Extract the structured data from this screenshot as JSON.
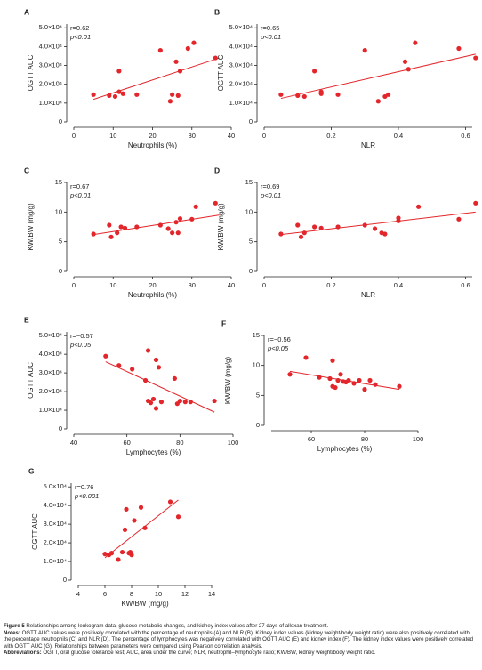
{
  "chart_data": [
    {
      "type": "scatter",
      "panel": "A",
      "x_label": "Neutrophils (%)",
      "y_label": "OGTT AUC",
      "annotations": [
        "r=0.62",
        "p<0.01"
      ],
      "color": "#e3262b",
      "x": [
        5,
        9,
        10.5,
        11.5,
        11.5,
        12.5,
        16,
        22,
        24.5,
        25,
        26,
        26.5,
        27,
        29,
        30.5,
        36
      ],
      "y": [
        14500,
        14000,
        13500,
        16000,
        27000,
        15000,
        14500,
        38000,
        11000,
        14500,
        32000,
        14000,
        27000,
        39000,
        42000,
        34000
      ],
      "fit_x": [
        5,
        37
      ],
      "fit_y": [
        12000,
        34000
      ],
      "xlim": [
        0,
        40
      ],
      "xticks": [
        0,
        10,
        20,
        30,
        40
      ],
      "ylim": [
        0,
        52000
      ],
      "yticks": [
        0,
        {
          "value": 10000,
          "label": "1.0×10⁴"
        },
        {
          "value": 20000,
          "label": "2.0×10⁴"
        },
        {
          "value": 30000,
          "label": "3.0×10⁴"
        },
        {
          "value": 40000,
          "label": "4.0×10⁴"
        },
        {
          "value": 50000,
          "label": "5.0×10⁴"
        }
      ]
    },
    {
      "type": "scatter",
      "panel": "B",
      "x_label": "NLR",
      "y_label": "OGTT AUC",
      "annotations": [
        "r=0.65",
        "p<0.01"
      ],
      "color": "#e3262b",
      "x": [
        0.05,
        0.1,
        0.12,
        0.15,
        0.17,
        0.17,
        0.22,
        0.3,
        0.34,
        0.36,
        0.37,
        0.42,
        0.43,
        0.45,
        0.58,
        0.63
      ],
      "y": [
        14500,
        14000,
        13500,
        27000,
        16000,
        15000,
        14500,
        38000,
        11000,
        13500,
        14500,
        32000,
        28000,
        42000,
        39000,
        34000
      ],
      "fit_x": [
        0.05,
        0.63
      ],
      "fit_y": [
        12500,
        36000
      ],
      "xlim": [
        0,
        0.62
      ],
      "xticks": [
        0,
        0.2,
        0.4,
        0.6
      ],
      "ylim": [
        0,
        52000
      ],
      "yticks": [
        0,
        {
          "value": 10000,
          "label": "1.0×10⁴"
        },
        {
          "value": 20000,
          "label": "2.0×10⁴"
        },
        {
          "value": 30000,
          "label": "3.0×10⁴"
        },
        {
          "value": 40000,
          "label": "4.0×10⁴"
        },
        {
          "value": 50000,
          "label": "5.0×10⁴"
        }
      ]
    },
    {
      "type": "scatter",
      "panel": "C",
      "x_label": "Neutrophils (%)",
      "y_label": "KW/BW (mg/g)",
      "annotations": [
        "r=0.67",
        "p<0.01"
      ],
      "color": "#e3262b",
      "x": [
        5,
        9,
        9.5,
        11,
        12,
        13,
        16,
        22,
        24,
        25,
        26,
        26.5,
        27,
        30,
        31,
        36
      ],
      "y": [
        6.3,
        7.8,
        5.8,
        6.5,
        7.5,
        7.3,
        7.5,
        7.8,
        7.2,
        6.5,
        8.3,
        6.5,
        8.9,
        8.8,
        10.9,
        11.5
      ],
      "fit_x": [
        5,
        37
      ],
      "fit_y": [
        6.2,
        9.5
      ],
      "xlim": [
        0,
        40
      ],
      "xticks": [
        0,
        10,
        20,
        30,
        40
      ],
      "ylim": [
        0,
        15
      ],
      "yticks": [
        0,
        5,
        10,
        15
      ]
    },
    {
      "type": "scatter",
      "panel": "D",
      "x_label": "NLR",
      "y_label": "KW/BW (mg/g)",
      "annotations": [
        "r=0.69",
        "p<0.01"
      ],
      "color": "#e3262b",
      "x": [
        0.05,
        0.1,
        0.11,
        0.12,
        0.15,
        0.17,
        0.22,
        0.3,
        0.33,
        0.35,
        0.36,
        0.4,
        0.4,
        0.46,
        0.58,
        0.63
      ],
      "y": [
        6.3,
        7.8,
        5.8,
        6.5,
        7.5,
        7.3,
        7.5,
        7.8,
        7.2,
        6.5,
        6.3,
        8.5,
        9,
        10.9,
        8.8,
        11.5
      ],
      "fit_x": [
        0.05,
        0.63
      ],
      "fit_y": [
        6.2,
        10
      ],
      "xlim": [
        0,
        0.62
      ],
      "xticks": [
        0,
        0.2,
        0.4,
        0.6
      ],
      "ylim": [
        0,
        15
      ],
      "yticks": [
        0,
        5,
        10,
        15
      ]
    },
    {
      "type": "scatter",
      "panel": "E",
      "x_label": "Lymphocytes (%)",
      "y_label": "OGTT AUC",
      "annotations": [
        "r=−0.57",
        "p<0.05"
      ],
      "color": "#e3262b",
      "x": [
        52,
        57,
        62,
        67,
        68,
        68,
        69,
        70,
        71,
        71,
        72,
        73,
        78,
        79,
        80,
        82,
        84,
        93
      ],
      "y": [
        39000,
        34000,
        32000,
        26000,
        42000,
        15000,
        14000,
        16000,
        37000,
        11000,
        33000,
        14500,
        27000,
        13500,
        15000,
        14500,
        14500,
        15000
      ],
      "fit_x": [
        52,
        93
      ],
      "fit_y": [
        36000,
        9000
      ],
      "xlim": [
        40,
        100
      ],
      "xticks": [
        40,
        60,
        80,
        100
      ],
      "ylim": [
        0,
        52000
      ],
      "yticks": [
        0,
        {
          "value": 10000,
          "label": "1.0×10⁴"
        },
        {
          "value": 20000,
          "label": "2.0×10⁴"
        },
        {
          "value": 30000,
          "label": "3.0×10⁴"
        },
        {
          "value": 40000,
          "label": "4.0×10⁴"
        },
        {
          "value": 50000,
          "label": "5.0×10⁴"
        }
      ]
    },
    {
      "type": "scatter",
      "panel": "F",
      "x_label": "Lymphocytes (%)",
      "y_label": "KW/BW (mg/g)",
      "annotations": [
        "r=−0.56",
        "p<0.05"
      ],
      "color": "#e3262b",
      "x": [
        52,
        58,
        63,
        67,
        68,
        68,
        69,
        70,
        71,
        72,
        73,
        74,
        76,
        78,
        80,
        82,
        84,
        93
      ],
      "y": [
        8.5,
        11.3,
        8,
        7.8,
        10.8,
        6.5,
        6.3,
        7.5,
        8.5,
        7.3,
        7.2,
        7.5,
        7,
        7.5,
        6,
        7.5,
        6.8,
        6.5
      ],
      "fit_x": [
        52,
        93
      ],
      "fit_y": [
        9,
        6
      ],
      "xlim": [
        45,
        100
      ],
      "xticks": [
        60,
        80,
        100
      ],
      "ylim": [
        0,
        15
      ],
      "yticks": [
        0,
        5,
        10,
        15
      ]
    },
    {
      "type": "scatter",
      "panel": "G",
      "x_label": "KW/BW (mg/g)",
      "y_label": "OGTT AUC",
      "annotations": [
        "r=0.76",
        "p<0.001"
      ],
      "color": "#e3262b",
      "x": [
        6,
        6.3,
        6.5,
        7,
        7.3,
        7.5,
        7.6,
        7.8,
        7.9,
        8,
        8.2,
        8.7,
        9,
        10.9,
        11.5
      ],
      "y": [
        14000,
        13500,
        14500,
        11000,
        15000,
        27000,
        38000,
        14500,
        15000,
        13500,
        32000,
        39000,
        28000,
        42000,
        34000
      ],
      "fit_x": [
        6,
        11.5
      ],
      "fit_y": [
        12000,
        43000
      ],
      "xlim": [
        4,
        14
      ],
      "xticks": [
        4,
        6,
        8,
        10,
        12,
        14
      ],
      "ylim": [
        0,
        52000
      ],
      "yticks": [
        0,
        {
          "value": 10000,
          "label": "1.0×10⁴"
        },
        {
          "value": 20000,
          "label": "2.0×10⁴"
        },
        {
          "value": 30000,
          "label": "3.0×10⁴"
        },
        {
          "value": 40000,
          "label": "4.0×10⁴"
        },
        {
          "value": 50000,
          "label": "5.0×10⁴"
        }
      ]
    }
  ],
  "caption": {
    "label": "Figure 5",
    "title": "Relationships among leukogram data, glucose metabolic changes, and kidney index values after 27 days of alloxan treatment.",
    "notes_label": "Notes:",
    "notes": "OGTT AUC values were positively correlated with the percentage of neutrophils (A) and NLR (B). Kidney index values (kidney weight/body weight ratio) were also positively correlated with the percentage neutrophils (C) and NLR (D). The percentage of lymphocytes was negatively correlated with OGTT AUC (E) and kidney index (F). The kidney index values were positively correlated with OGTT AUC (G). Relationships between parameters were compared using Pearson correlation analysis.",
    "abbreviations_label": "Abbreviations:",
    "abbreviations": "OGTT, oral glucose tolerance test; AUC, area under the curve; NLR, neutrophil–lymphocyte ratio; KW/BW, kidney weight/body weight ratio."
  }
}
